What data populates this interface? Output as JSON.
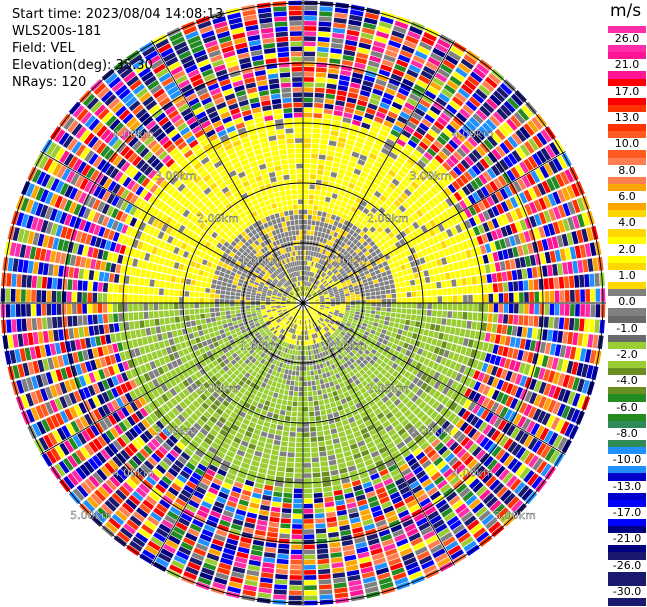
{
  "header": {
    "start_time": "Start time: 2023/08/04 14:08:13",
    "instrument": "WLS200s-181",
    "field": "Field: VEL",
    "elevation": "Elevation(deg): 35.30",
    "nrays": "NRays: 120"
  },
  "colorbar": {
    "unit": "m/s",
    "ticks": [
      "26.0",
      "21.0",
      "17.0",
      "13.0",
      "10.0",
      "8.0",
      "6.0",
      "4.0",
      "2.0",
      "1.0",
      "0.0",
      "-1.0",
      "-2.0",
      "-4.0",
      "-6.0",
      "-8.0",
      "-10.0",
      "-13.0",
      "-17.0",
      "-21.0",
      "-26.0",
      "-30.0"
    ],
    "colors": [
      "#ff2da8",
      "#ff1493",
      "#ff0000",
      "#ff3300",
      "#ff5a1f",
      "#ff7f50",
      "#ffa500",
      "#ffd700",
      "#ffff00",
      "#ffd700",
      "#808080",
      "#696969",
      "#9acd32",
      "#6b8e23",
      "#228b22",
      "#2e8b57",
      "#1e90ff",
      "#0000cd",
      "#0000ff",
      "#000080",
      "#191970",
      "#1a1a6e"
    ]
  },
  "chart_data": {
    "type": "heatmap",
    "title": "",
    "projection": "polar PPI",
    "field": "VEL",
    "units": "m/s",
    "nrays": 120,
    "range_rings_km": [
      1.0,
      2.0,
      3.0,
      4.0,
      5.0
    ],
    "ring_labels": [
      "1.00km",
      "2.00km",
      "3.00km",
      "4.00km",
      "5.00km"
    ],
    "ring_labels_repeated": [
      "1.00km",
      "1.00km",
      "1.00km",
      "1.00km",
      "2.00km",
      "2.00km",
      "2.00km",
      "2.00km",
      "3.00km",
      "3.00km",
      "3.00km",
      "3.00km",
      "4.00km",
      "4.00km",
      "4.00km",
      "4.00km",
      "5.00km",
      "5.00km"
    ],
    "color_scale": [
      {
        "value": 26.0,
        "color": "#ff2da8"
      },
      {
        "value": 21.0,
        "color": "#ff1493"
      },
      {
        "value": 17.0,
        "color": "#ff0000"
      },
      {
        "value": 13.0,
        "color": "#ff3300"
      },
      {
        "value": 10.0,
        "color": "#ff5a1f"
      },
      {
        "value": 8.0,
        "color": "#ff7f50"
      },
      {
        "value": 6.0,
        "color": "#ffa500"
      },
      {
        "value": 4.0,
        "color": "#ffd700"
      },
      {
        "value": 2.0,
        "color": "#ffff00"
      },
      {
        "value": 1.0,
        "color": "#ffd700"
      },
      {
        "value": 0.0,
        "color": "#808080"
      },
      {
        "value": -1.0,
        "color": "#696969"
      },
      {
        "value": -2.0,
        "color": "#9acd32"
      },
      {
        "value": -4.0,
        "color": "#6b8e23"
      },
      {
        "value": -6.0,
        "color": "#228b22"
      },
      {
        "value": -8.0,
        "color": "#2e8b57"
      },
      {
        "value": -10.0,
        "color": "#1e90ff"
      },
      {
        "value": -13.0,
        "color": "#0000cd"
      },
      {
        "value": -17.0,
        "color": "#0000ff"
      },
      {
        "value": -21.0,
        "color": "#000080"
      },
      {
        "value": -26.0,
        "color": "#191970"
      },
      {
        "value": -30.0,
        "color": "#1a1a6e"
      }
    ],
    "pattern": {
      "inner_coherent_km": 3.0,
      "north_half_inner": "positive (~1 to 2 m/s, yellow)",
      "south_half_inner": "negative (~-1 to -4 m/s, grey/olive)",
      "outer_noise_km": [
        3.0,
        6.2
      ]
    }
  }
}
